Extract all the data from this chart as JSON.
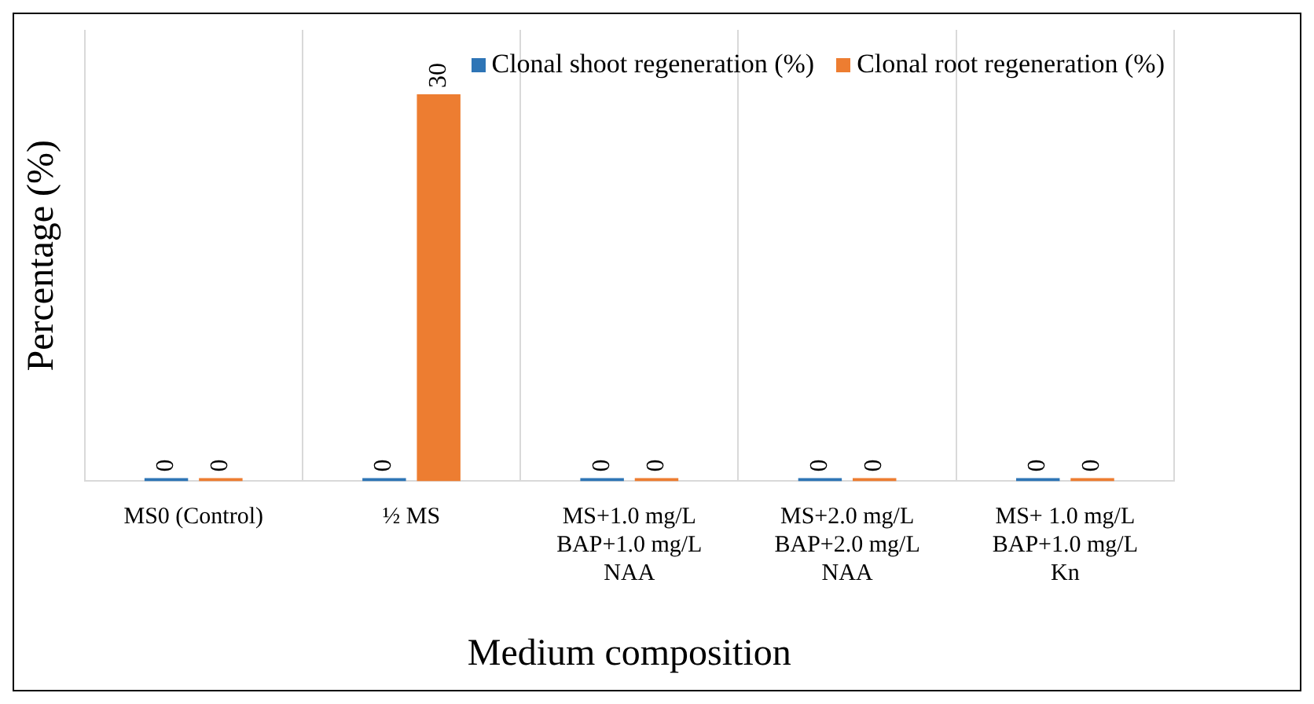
{
  "chart_data": {
    "type": "bar",
    "xlabel": "Medium composition",
    "ylabel": "Percentage (%)",
    "categories": [
      "MS0 (Control)",
      "½ MS",
      "MS+1.0 mg/L\nBAP+1.0 mg/L\nNAA",
      "MS+2.0 mg/L\nBAP+2.0 mg/L\nNAA",
      "MS+ 1.0 mg/L\nBAP+1.0 mg/L\nKn"
    ],
    "series": [
      {
        "name": "Clonal shoot regeneration (%)",
        "color": "#2e75b6",
        "values": [
          0,
          0,
          0,
          0,
          0
        ]
      },
      {
        "name": "Clonal root regeneration (%)",
        "color": "#ed7d31",
        "values": [
          0,
          30,
          0,
          0,
          0
        ]
      }
    ],
    "data_labels": true,
    "grid": "x",
    "legend": "top right",
    "tick_labels": "x"
  }
}
